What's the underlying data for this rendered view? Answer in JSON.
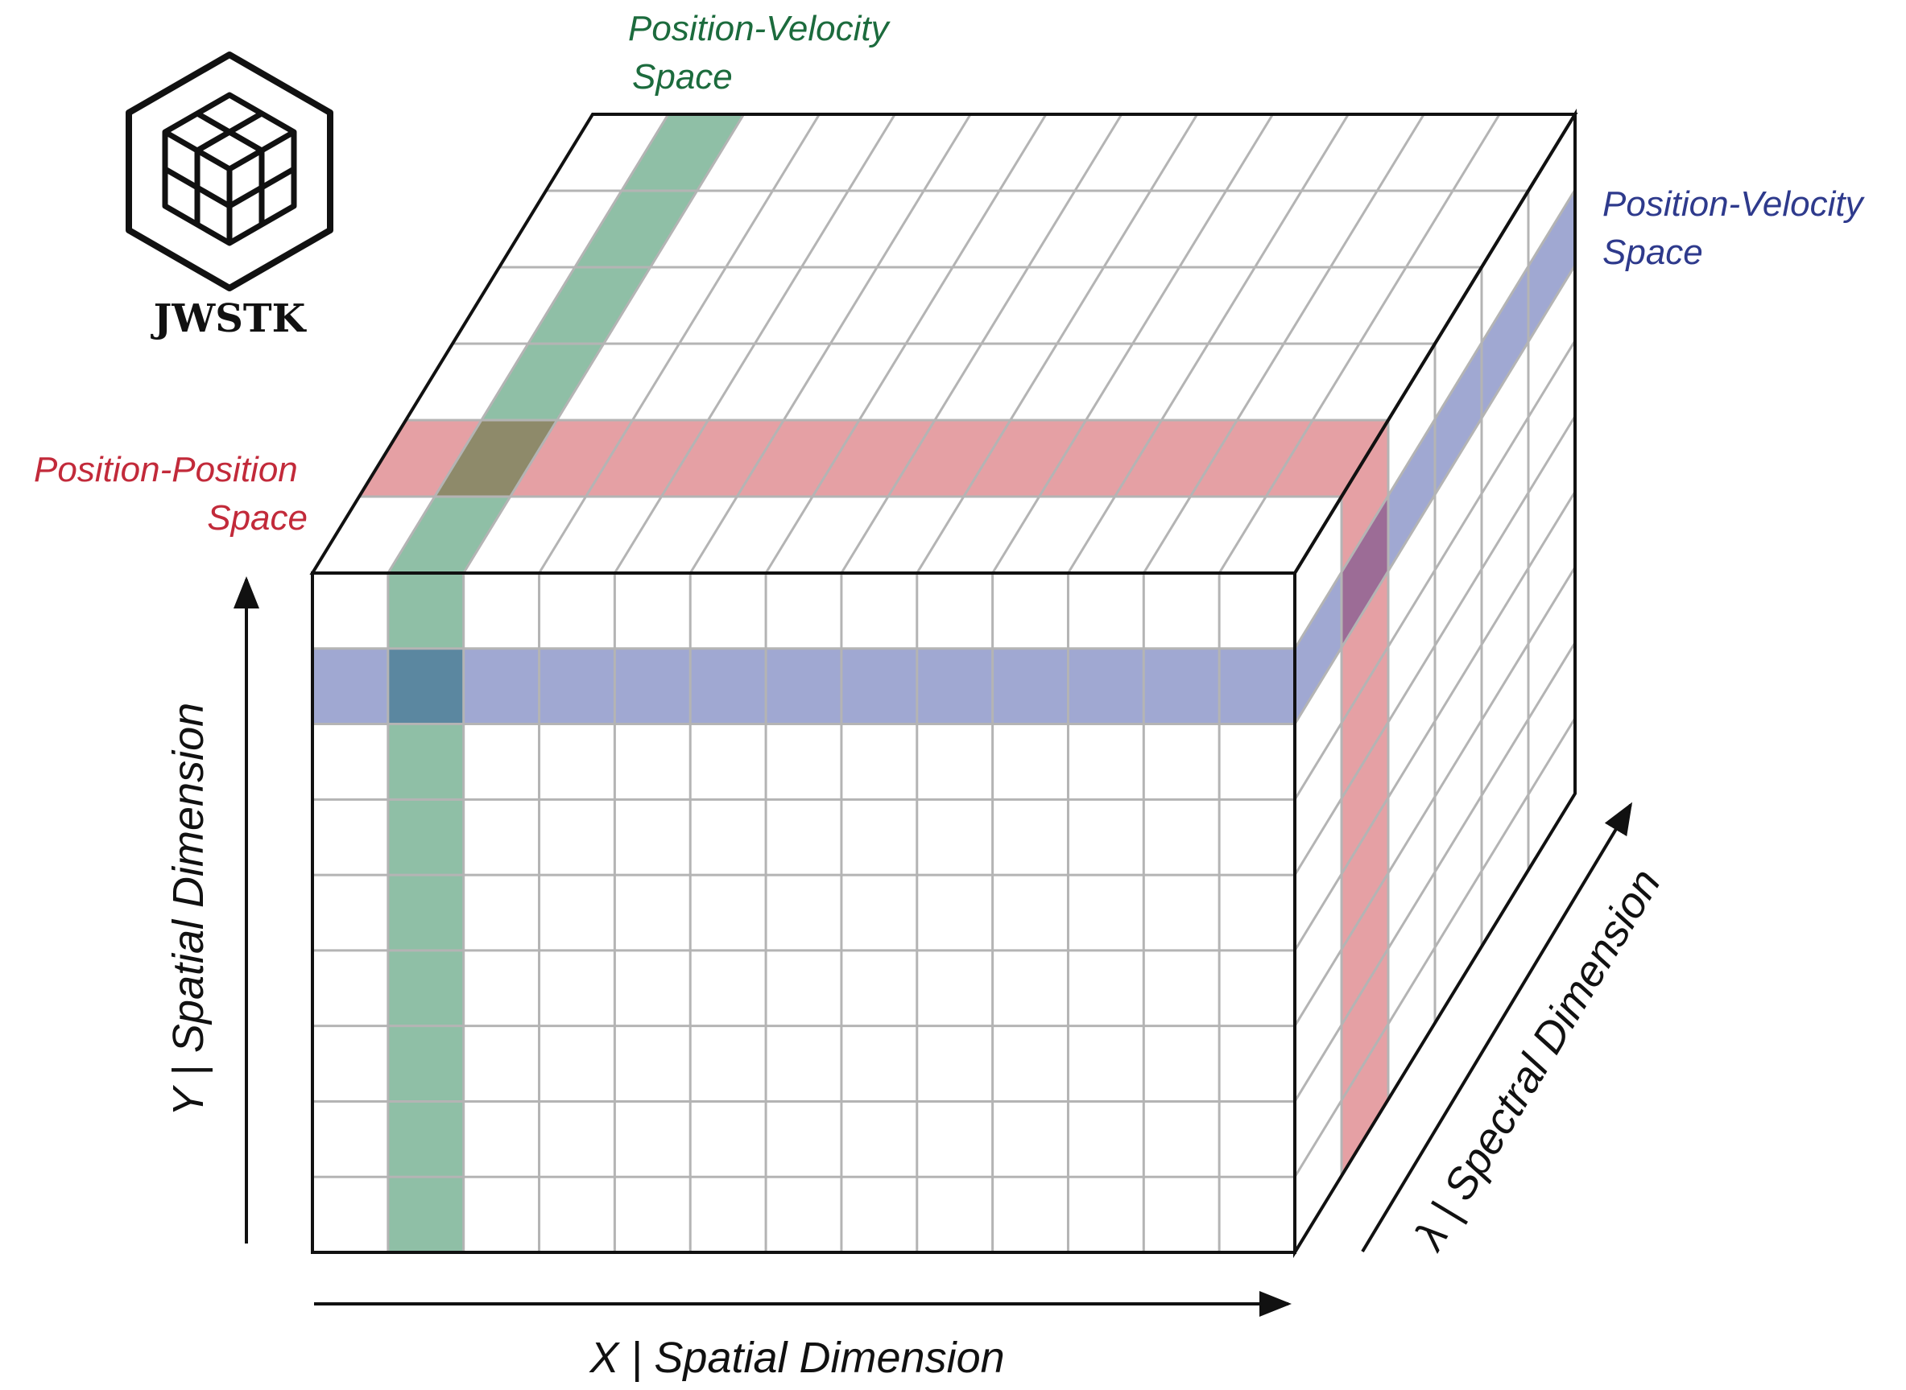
{
  "logo": {
    "text": "JWSTK"
  },
  "labels": {
    "pv_top": [
      "Position-Velocity",
      "Space"
    ],
    "pv_right": [
      "Position-Velocity",
      "Space"
    ],
    "pp_left": [
      "Position-Position",
      "Space"
    ],
    "x_axis": "X | Spatial Dimension",
    "y_axis": "Y | Spatial Dimension",
    "lambda_axis": "λ | Spectral Dimension"
  },
  "colors": {
    "green": "#8fbfa6",
    "blue": "#a0a8d2",
    "red": "#e5a0a4",
    "green_blue_overlap": "#5b87a0",
    "green_red_overlap": "#8e8a6a",
    "blue_red_overlap": "#9c6c96",
    "pv_top_text": "#1c6b3d",
    "pv_right_text": "#2e3a8c",
    "pp_text": "#c22a3a",
    "grid": "#b4b4b4",
    "edge": "#111111"
  },
  "cube": {
    "columns": 13,
    "rows": 9,
    "depth": 6
  }
}
